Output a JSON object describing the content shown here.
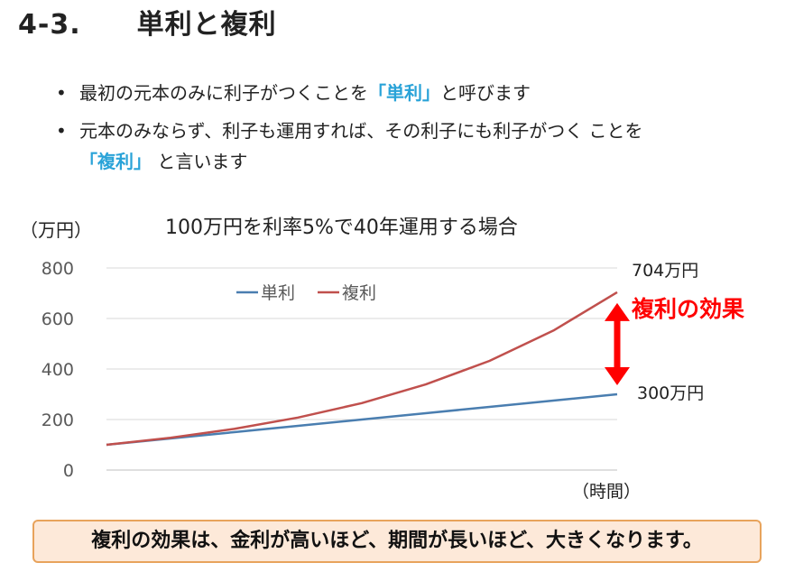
{
  "title": "4-3.　　単利と複利",
  "bullets": [
    {
      "dot": "•",
      "pre": "最初の元本のみに利子がつくことを",
      "kw": "「単利」",
      "post": "と呼びます"
    },
    {
      "dot": "•",
      "pre": "元本のみならず、利子も運用すれば、その利子にも利子がつく ことを",
      "kw": "「複利」",
      "post": " と言います"
    }
  ],
  "chart_data": {
    "type": "line",
    "title": "100万円を利率5%で40年運用する場合",
    "ylabel": "（万円）",
    "xlabel": "（時間）",
    "ylim": [
      0,
      800
    ],
    "yticks": [
      0,
      200,
      400,
      600,
      800
    ],
    "x": [
      0,
      5,
      10,
      15,
      20,
      25,
      30,
      35,
      40
    ],
    "series": [
      {
        "name": "単利",
        "color": "#4a7eb0",
        "values": [
          100,
          125,
          150,
          175,
          200,
          225,
          250,
          275,
          300
        ]
      },
      {
        "name": "複利",
        "color": "#c0504d",
        "values": [
          100,
          128,
          163,
          208,
          265,
          339,
          432,
          552,
          704
        ]
      }
    ],
    "legend_position": "top-left",
    "annotations": {
      "simple_end": "300万円",
      "compound_end": "704万円",
      "effect": "複利の効果",
      "effect_color": "#ff0000"
    }
  },
  "summary": "複利の効果は、金利が高いほど、期間が長いほど、大きくなります。"
}
